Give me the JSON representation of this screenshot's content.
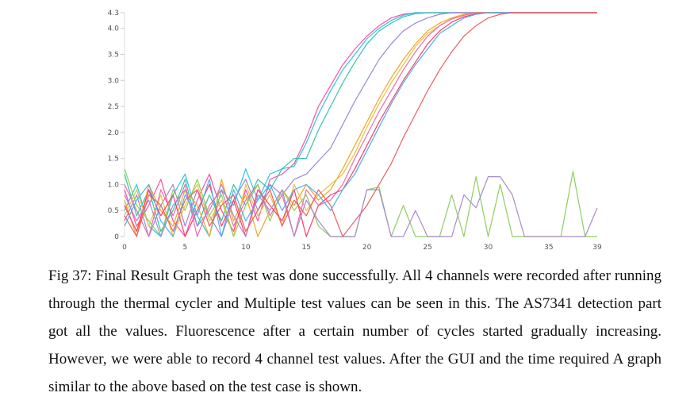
{
  "figure": {
    "caption": "Fig 37: Final Result Graph the test was done successfully. All 4 channels were recorded after running through the thermal cycler and Multiple test values can be seen in this. The AS7341 detection part got all the values. Fluorescence after a certain number of cycles started gradually increasing. However, we were able to record 4 channel test values. After the GUI and the time required A graph similar to the above based on the test case is shown."
  },
  "chart_data": {
    "type": "line",
    "title": "",
    "xlabel": "",
    "ylabel": "",
    "xlim": [
      0,
      39
    ],
    "ylim": [
      0,
      4.3
    ],
    "x_ticks": [
      "0",
      "5",
      "10",
      "15",
      "20",
      "25",
      "30",
      "35",
      "39"
    ],
    "y_ticks": [
      "0",
      "0.5",
      "1.0",
      "1.5",
      "2.0",
      "2.5",
      "3.0",
      "3.5",
      "4.0",
      "4.3"
    ],
    "grid": false,
    "legend": "none",
    "colors": [
      "#ff4fa3",
      "#2ec4e8",
      "#36c3a8",
      "#9b86d6",
      "#f5a623",
      "#e8c13c",
      "#f06ba8",
      "#8fce5e",
      "#ff3b6b",
      "#4fb0f0",
      "#a78bd0",
      "#e86060"
    ],
    "series": [
      {
        "color": "#ff4fa3",
        "values": [
          0.9,
          0.2,
          0.6,
          1.1,
          0.3,
          0.0,
          0.7,
          1.2,
          0.5,
          0.1,
          0.9,
          0.3,
          1.1,
          1.2,
          1.4,
          1.9,
          2.5,
          2.9,
          3.3,
          3.6,
          3.85,
          4.05,
          4.2,
          4.27,
          4.3,
          4.3,
          4.3,
          4.3,
          4.3,
          4.3,
          4.3,
          4.3,
          4.3,
          4.3,
          4.3,
          4.3,
          4.3,
          4.3,
          4.3,
          4.3
        ]
      },
      {
        "color": "#2ec4e8",
        "values": [
          0.5,
          1.0,
          0.2,
          0.0,
          0.8,
          1.2,
          0.4,
          0.0,
          0.9,
          0.6,
          1.3,
          0.7,
          1.2,
          1.3,
          1.35,
          1.8,
          2.35,
          2.8,
          3.2,
          3.5,
          3.8,
          4.0,
          4.15,
          4.25,
          4.3,
          4.3,
          4.3,
          4.3,
          4.3,
          4.3,
          4.3,
          4.3,
          4.3,
          4.3,
          4.3,
          4.3,
          4.3,
          4.3,
          4.3,
          4.3
        ]
      },
      {
        "color": "#36c3a8",
        "values": [
          1.2,
          0.4,
          0.9,
          0.1,
          0.5,
          1.1,
          0.2,
          0.8,
          0.3,
          1.0,
          0.6,
          1.1,
          0.9,
          1.3,
          1.5,
          1.5,
          2.05,
          2.5,
          2.95,
          3.35,
          3.7,
          3.95,
          4.1,
          4.22,
          4.28,
          4.3,
          4.3,
          4.3,
          4.3,
          4.3,
          4.3,
          4.3,
          4.3,
          4.3,
          4.3,
          4.3,
          4.3,
          4.3,
          4.3,
          4.3
        ]
      },
      {
        "color": "#9b86d6",
        "values": [
          0.3,
          0.8,
          0.0,
          0.6,
          1.0,
          0.2,
          0.9,
          0.4,
          0.0,
          0.7,
          1.1,
          0.5,
          1.0,
          0.8,
          1.1,
          1.2,
          1.45,
          1.7,
          2.15,
          2.6,
          3.0,
          3.4,
          3.7,
          3.95,
          4.1,
          4.2,
          4.27,
          4.3,
          4.3,
          4.3,
          4.3,
          4.3,
          4.3,
          4.3,
          4.3,
          4.3,
          4.3,
          4.3,
          4.3,
          4.3
        ]
      },
      {
        "color": "#f5a623",
        "values": [
          0.7,
          0.0,
          1.0,
          0.5,
          0.2,
          0.9,
          0.6,
          0.0,
          1.1,
          0.3,
          0.8,
          0.0,
          0.5,
          0.9,
          0.6,
          1.0,
          0.7,
          0.9,
          1.3,
          1.75,
          2.2,
          2.65,
          3.05,
          3.4,
          3.7,
          3.95,
          4.1,
          4.2,
          4.27,
          4.3,
          4.3,
          4.3,
          4.3,
          4.3,
          4.3,
          4.3,
          4.3,
          4.3,
          4.3,
          4.3
        ]
      },
      {
        "color": "#e8c13c",
        "values": [
          0.4,
          0.9,
          0.2,
          0.8,
          0.0,
          0.6,
          1.0,
          0.3,
          0.7,
          0.0,
          1.0,
          0.4,
          0.8,
          0.2,
          1.0,
          0.5,
          0.8,
          1.0,
          1.2,
          1.6,
          2.1,
          2.55,
          2.95,
          3.3,
          3.65,
          3.9,
          4.05,
          4.18,
          4.25,
          4.3,
          4.3,
          4.3,
          4.3,
          4.3,
          4.3,
          4.3,
          4.3,
          4.3,
          4.3,
          4.3
        ]
      },
      {
        "color": "#f06ba8",
        "values": [
          1.0,
          0.5,
          0.0,
          0.9,
          0.4,
          1.0,
          0.0,
          0.6,
          0.9,
          0.2,
          0.7,
          1.0,
          0.4,
          0.8,
          0.0,
          0.9,
          0.6,
          0.7,
          1.0,
          1.5,
          1.95,
          2.4,
          2.8,
          3.2,
          3.55,
          3.85,
          4.05,
          4.18,
          4.25,
          4.3,
          4.3,
          4.3,
          4.3,
          4.3,
          4.3,
          4.3,
          4.3,
          4.3,
          4.3,
          4.3
        ]
      },
      {
        "color": "#8fce5e",
        "values": [
          1.3,
          0.6,
          0.3,
          0.0,
          0.9,
          0.5,
          1.1,
          0.4,
          0.8,
          0.0,
          0.6,
          1.0,
          0.3,
          0.9,
          0.5,
          0.8,
          0.2,
          0.0,
          0.0,
          0.0,
          0.9,
          0.95,
          0.0,
          0.6,
          0.0,
          0.0,
          0.0,
          0.8,
          0.0,
          1.15,
          0.0,
          1.0,
          0.0,
          0.0,
          0.0,
          0.0,
          0.0,
          1.25,
          0.0,
          0.0
        ]
      },
      {
        "color": "#ff3b6b",
        "values": [
          0.6,
          0.1,
          0.9,
          0.4,
          0.8,
          0.0,
          0.5,
          1.0,
          0.2,
          0.7,
          0.0,
          0.9,
          0.6,
          0.3,
          0.9,
          0.0,
          0.6,
          0.8,
          0.9,
          1.3,
          1.75,
          2.2,
          2.6,
          3.0,
          3.35,
          3.7,
          3.95,
          4.12,
          4.22,
          4.28,
          4.3,
          4.3,
          4.3,
          4.3,
          4.3,
          4.3,
          4.3,
          4.3,
          4.3,
          4.3
        ]
      },
      {
        "color": "#4fb0f0",
        "values": [
          0.2,
          0.7,
          1.0,
          0.3,
          0.0,
          0.8,
          0.4,
          1.1,
          0.0,
          0.9,
          0.3,
          0.7,
          1.0,
          0.5,
          0.9,
          1.0,
          0.8,
          0.5,
          0.9,
          1.2,
          1.65,
          2.1,
          2.55,
          2.95,
          3.3,
          3.6,
          3.9,
          4.05,
          4.2,
          4.27,
          4.3,
          4.3,
          4.3,
          4.3,
          4.3,
          4.3,
          4.3,
          4.3,
          4.3,
          4.3
        ]
      },
      {
        "color": "#a78bd0",
        "values": [
          0.8,
          0.3,
          0.7,
          0.0,
          0.6,
          0.9,
          0.2,
          0.5,
          1.0,
          0.4,
          0.0,
          0.8,
          0.5,
          0.9,
          0.0,
          0.7,
          0.3,
          0.0,
          0.0,
          0.0,
          0.9,
          0.9,
          0.0,
          0.0,
          0.5,
          0.0,
          0.0,
          0.0,
          0.8,
          0.55,
          1.15,
          1.15,
          0.8,
          0.0,
          0.0,
          0.0,
          0.0,
          0.0,
          0.0,
          0.55
        ]
      },
      {
        "color": "#e86060",
        "values": [
          0.4,
          0.0,
          0.8,
          0.6,
          0.1,
          0.7,
          0.9,
          0.2,
          0.6,
          0.8,
          0.1,
          0.5,
          0.9,
          0.2,
          0.7,
          0.4,
          0.9,
          0.6,
          0.0,
          0.3,
          0.6,
          1.0,
          1.4,
          1.9,
          2.35,
          2.8,
          3.2,
          3.55,
          3.85,
          4.05,
          4.2,
          4.27,
          4.3,
          4.3,
          4.3,
          4.3,
          4.3,
          4.3,
          4.3,
          4.3
        ]
      }
    ]
  }
}
